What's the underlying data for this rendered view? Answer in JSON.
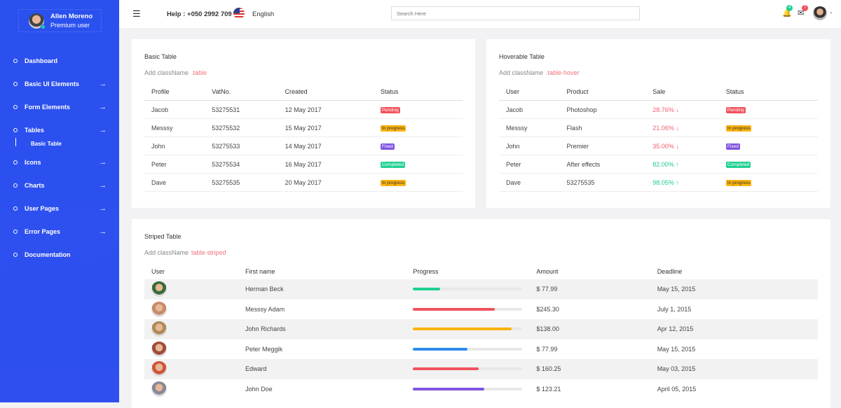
{
  "user": {
    "name": "Allen Moreno",
    "role": "Premium user"
  },
  "nav": [
    {
      "label": "Dashboard",
      "arrow": false
    },
    {
      "label": "Basic UI Elements",
      "arrow": true
    },
    {
      "label": "Form Elements",
      "arrow": true
    },
    {
      "label": "Tables",
      "arrow": true,
      "sub": "Basic Table"
    },
    {
      "label": "Icons",
      "arrow": true
    },
    {
      "label": "Charts",
      "arrow": true
    },
    {
      "label": "User Pages",
      "arrow": true
    },
    {
      "label": "Error Pages",
      "arrow": true
    },
    {
      "label": "Documentation",
      "arrow": false
    }
  ],
  "topbar": {
    "help": "Help : +050 2992 709",
    "language": "English",
    "search_placeholder": "Search Here",
    "notifications": "4",
    "messages": "7"
  },
  "colors": {
    "sidebar": "#2a50ee",
    "pending": "#f0545e",
    "in_progress": "#fbb30f",
    "fixed": "#8054e0",
    "completed": "#1fd191"
  },
  "basic": {
    "title": "Basic Table",
    "hint": "Add className",
    "cls": ".table",
    "headers": [
      "Profile",
      "VatNo.",
      "Created",
      "Status"
    ],
    "rows": [
      [
        "Jacob",
        "53275531",
        "12 May 2017",
        "Pending"
      ],
      [
        "Messsy",
        "53275532",
        "15 May 2017",
        "In progress"
      ],
      [
        "John",
        "53275533",
        "14 May 2017",
        "Fixed"
      ],
      [
        "Peter",
        "53275534",
        "16 May 2017",
        "Completed"
      ],
      [
        "Dave",
        "53275535",
        "20 May 2017",
        "In progress"
      ]
    ]
  },
  "hover": {
    "title": "Hoverable Table",
    "hint": "Add className",
    "cls": ".table-hover",
    "headers": [
      "User",
      "Product",
      "Sale",
      "Status"
    ],
    "rows": [
      [
        "Jacob",
        "Photoshop",
        "28.76%",
        "down",
        "Pending"
      ],
      [
        "Messsy",
        "Flash",
        "21.06%",
        "down",
        "In progress"
      ],
      [
        "John",
        "Premier",
        "35.00%",
        "down",
        "Fixed"
      ],
      [
        "Peter",
        "After effects",
        "82.00%",
        "up",
        "Completed"
      ],
      [
        "Dave",
        "53275535",
        "98.05%",
        "up",
        "In progress"
      ]
    ]
  },
  "striped": {
    "title": "Striped Table",
    "hint": "Add className",
    "cls": "table-striped",
    "headers": [
      "User",
      "First name",
      "Progress",
      "Amount",
      "Deadline"
    ],
    "rows": [
      {
        "name": "Herman Beck",
        "progress": 25,
        "color": "#1fd191",
        "amount": "$ 77.99",
        "deadline": "May 15, 2015"
      },
      {
        "name": "Messsy Adam",
        "progress": 75,
        "color": "#f0545e",
        "amount": "$245.30",
        "deadline": "July 1, 2015"
      },
      {
        "name": "John Richards",
        "progress": 90,
        "color": "#fbb30f",
        "amount": "$138.00",
        "deadline": "Apr 12, 2015"
      },
      {
        "name": "Peter Meggik",
        "progress": 50,
        "color": "#2d8cf0",
        "amount": "$ 77.99",
        "deadline": "May 15, 2015"
      },
      {
        "name": "Edward",
        "progress": 60,
        "color": "#f0545e",
        "amount": "$ 160.25",
        "deadline": "May 03, 2015"
      },
      {
        "name": "John Doe",
        "progress": 65,
        "color": "#8054e0",
        "amount": "$ 123.21",
        "deadline": "April 05, 2015"
      }
    ]
  }
}
